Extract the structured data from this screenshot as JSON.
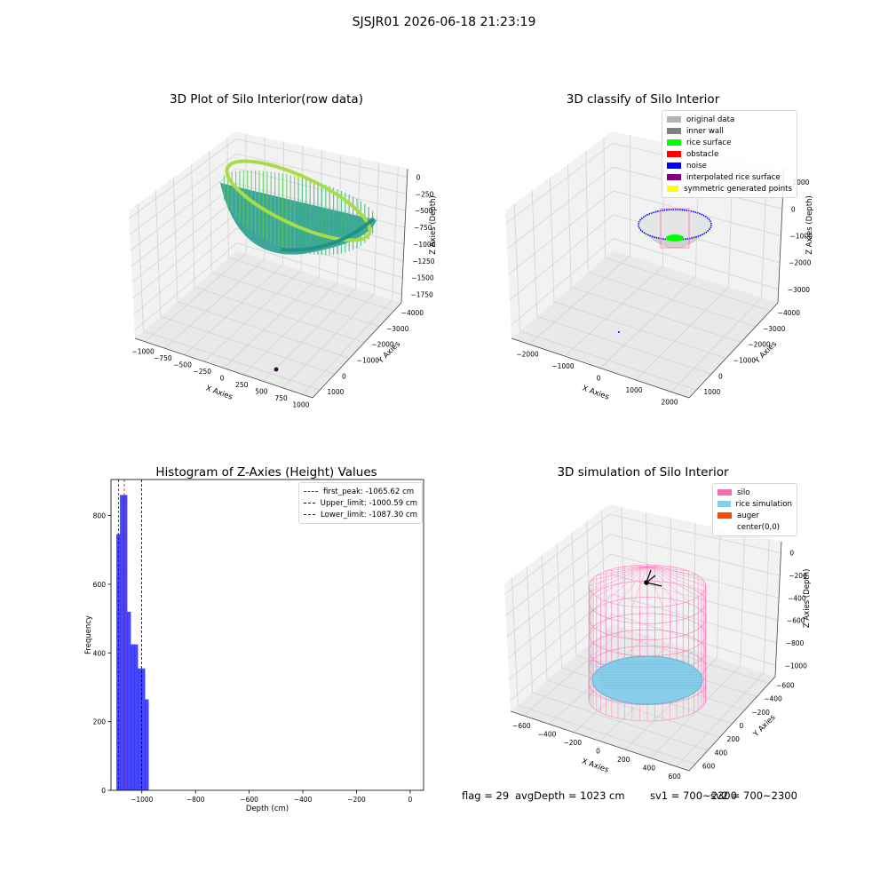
{
  "suptitle": "SJSJR01 2026-06-18 21:23:19",
  "status": {
    "flag": "flag = 29",
    "avg": "avgDepth = 1023 cm",
    "sv1": "sv1 = 700~2300",
    "sv2": "sv2 = 700~2300"
  },
  "chart_data": [
    {
      "type": "scatter",
      "projection": "3d",
      "title": "3D Plot of Silo Interior(row data)",
      "xlabel": "X Axies",
      "ylabel": "Y Axies",
      "zlabel": "Z Axies (Depth)",
      "x_ticks": [
        "−1000",
        "−750",
        "−500",
        "−250",
        "0",
        "250",
        "500",
        "750",
        "1000"
      ],
      "y_ticks": [
        "1000",
        "0",
        "−1000",
        "−2000",
        "−3000",
        "−4000"
      ],
      "z_ticks": [
        "0",
        "−250",
        "−500",
        "−750",
        "−1000",
        "−1250",
        "−1500",
        "−1750"
      ],
      "colormap": "viridis",
      "grid": true,
      "series": [
        {
          "values": [
            {
              "x": 0,
              "y": 0,
              "z": -1050
            }
          ]
        }
      ]
    },
    {
      "type": "scatter",
      "projection": "3d",
      "title": "3D classify of Silo Interior",
      "xlabel": "X Axies",
      "ylabel": "Y Axies",
      "zlabel": "Z Axies (Depth)",
      "x_ticks": [
        "−2000",
        "−1000",
        "0",
        "1000",
        "2000"
      ],
      "y_ticks": [
        "1000",
        "0",
        "−1000",
        "−2000",
        "−3000",
        "−4000"
      ],
      "z_ticks": [
        "1000",
        "0",
        "−1000",
        "−2000",
        "−3000"
      ],
      "legend": {
        "placement": "top-right",
        "entries": [
          {
            "label": "original data",
            "color": "#b3b3b3"
          },
          {
            "label": "inner wall",
            "color": "#808080"
          },
          {
            "label": "rice surface",
            "color": "#00ff00"
          },
          {
            "label": "obstacle",
            "color": "#ff0000"
          },
          {
            "label": "noise",
            "color": "#0000ff"
          },
          {
            "label": "interpolated rice surface",
            "color": "#800080"
          },
          {
            "label": "symmetric generated points",
            "color": "#ffff00"
          }
        ]
      },
      "grid": true
    },
    {
      "type": "bar",
      "title": "Histogram of Z-Axies (Height) Values",
      "xlabel": "Depth (cm)",
      "ylabel": "Frequency",
      "xlim": [
        -1115,
        50
      ],
      "ylim": [
        0,
        905
      ],
      "x_ticks": [
        -1000,
        -800,
        -600,
        -400,
        -200,
        0
      ],
      "x_tick_labels": [
        "−1000",
        "−800",
        "−600",
        "−400",
        "−200",
        "0"
      ],
      "y_ticks": [
        0,
        200,
        400,
        600,
        800
      ],
      "y_tick_labels": [
        "0",
        "200",
        "400",
        "600",
        "800"
      ],
      "bar_color": "#0000ff",
      "bin_width": 13.3,
      "bins_start": [
        -1095,
        -1081.7,
        -1068.4,
        -1055.1,
        -1041.8,
        -1028.5,
        -1015.2,
        -1001.9,
        -988.6
      ],
      "values": [
        746,
        860,
        860,
        520,
        425,
        425,
        355,
        355,
        265
      ],
      "legend": {
        "placement": "top-right",
        "entries": [
          {
            "label": "first_peak: -1065.62 cm",
            "value": -1065.62,
            "color": "#ff0000"
          },
          {
            "label": "Upper_limit: -1000.59 cm",
            "value": -1000.59,
            "color": "#000000"
          },
          {
            "label": "Lower_limit: -1087.30 cm",
            "value": -1087.3,
            "color": "#0000ff"
          }
        ]
      },
      "grid": false
    },
    {
      "type": "scatter",
      "projection": "3d",
      "title": "3D simulation of Silo Interior",
      "xlabel": "X Axies",
      "ylabel": "Y Axies",
      "zlabel": "Z Axies (Depth)",
      "x_ticks": [
        "−600",
        "−400",
        "−200",
        "0",
        "200",
        "400",
        "600"
      ],
      "y_ticks": [
        "600",
        "400",
        "200",
        "0",
        "−200",
        "−400",
        "−600"
      ],
      "z_ticks": [
        "0",
        "−200",
        "−400",
        "−600",
        "−800",
        "−1000"
      ],
      "legend": {
        "placement": "top-right",
        "entries": [
          {
            "label": "silo",
            "color": "#ff69b4"
          },
          {
            "label": "rice simulation",
            "color": "#87ceeb"
          },
          {
            "label": "auger",
            "color": "#ff4500"
          },
          {
            "label": "center(0,0)",
            "color": "#ffffff"
          }
        ]
      },
      "grid": true
    }
  ]
}
